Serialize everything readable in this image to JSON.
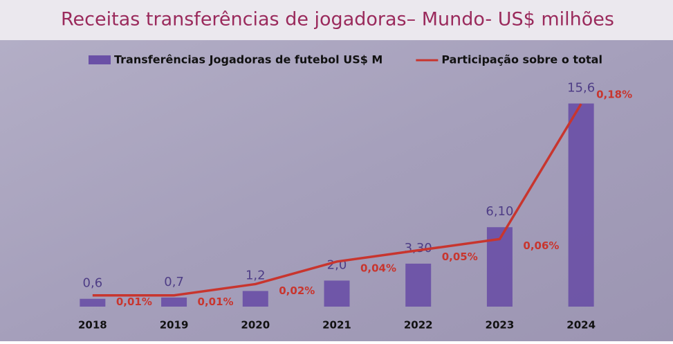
{
  "chart_data": {
    "type": "bar-line",
    "title": "Receitas transferências de jogadoras– Mundo- US$ milhões",
    "categories": [
      "2018",
      "2019",
      "2020",
      "2021",
      "2022",
      "2023",
      "2024"
    ],
    "series": [
      {
        "name": "Transferências Jogadoras de futebol US$ M",
        "type": "bar",
        "color": "#6a50a6",
        "values": [
          0.6,
          0.7,
          1.2,
          2.0,
          3.3,
          6.1,
          15.6
        ],
        "value_labels": [
          "0,6",
          "0,7",
          "1,2",
          "2,0",
          "3,30",
          "6,10",
          "15,6"
        ]
      },
      {
        "name": "Participação sobre o total",
        "type": "line",
        "axis": "y2",
        "color": "#c8352e",
        "values": [
          0.01,
          0.01,
          0.02,
          0.04,
          0.05,
          0.06,
          0.18
        ],
        "value_labels": [
          "0,01%",
          "0,01%",
          "0,02%",
          "0,04%",
          "0,05%",
          "0,06%",
          "0,18%"
        ]
      }
    ],
    "ylim": [
      0,
      16
    ],
    "y2lim": [
      0,
      0.185
    ],
    "legend": "top"
  }
}
